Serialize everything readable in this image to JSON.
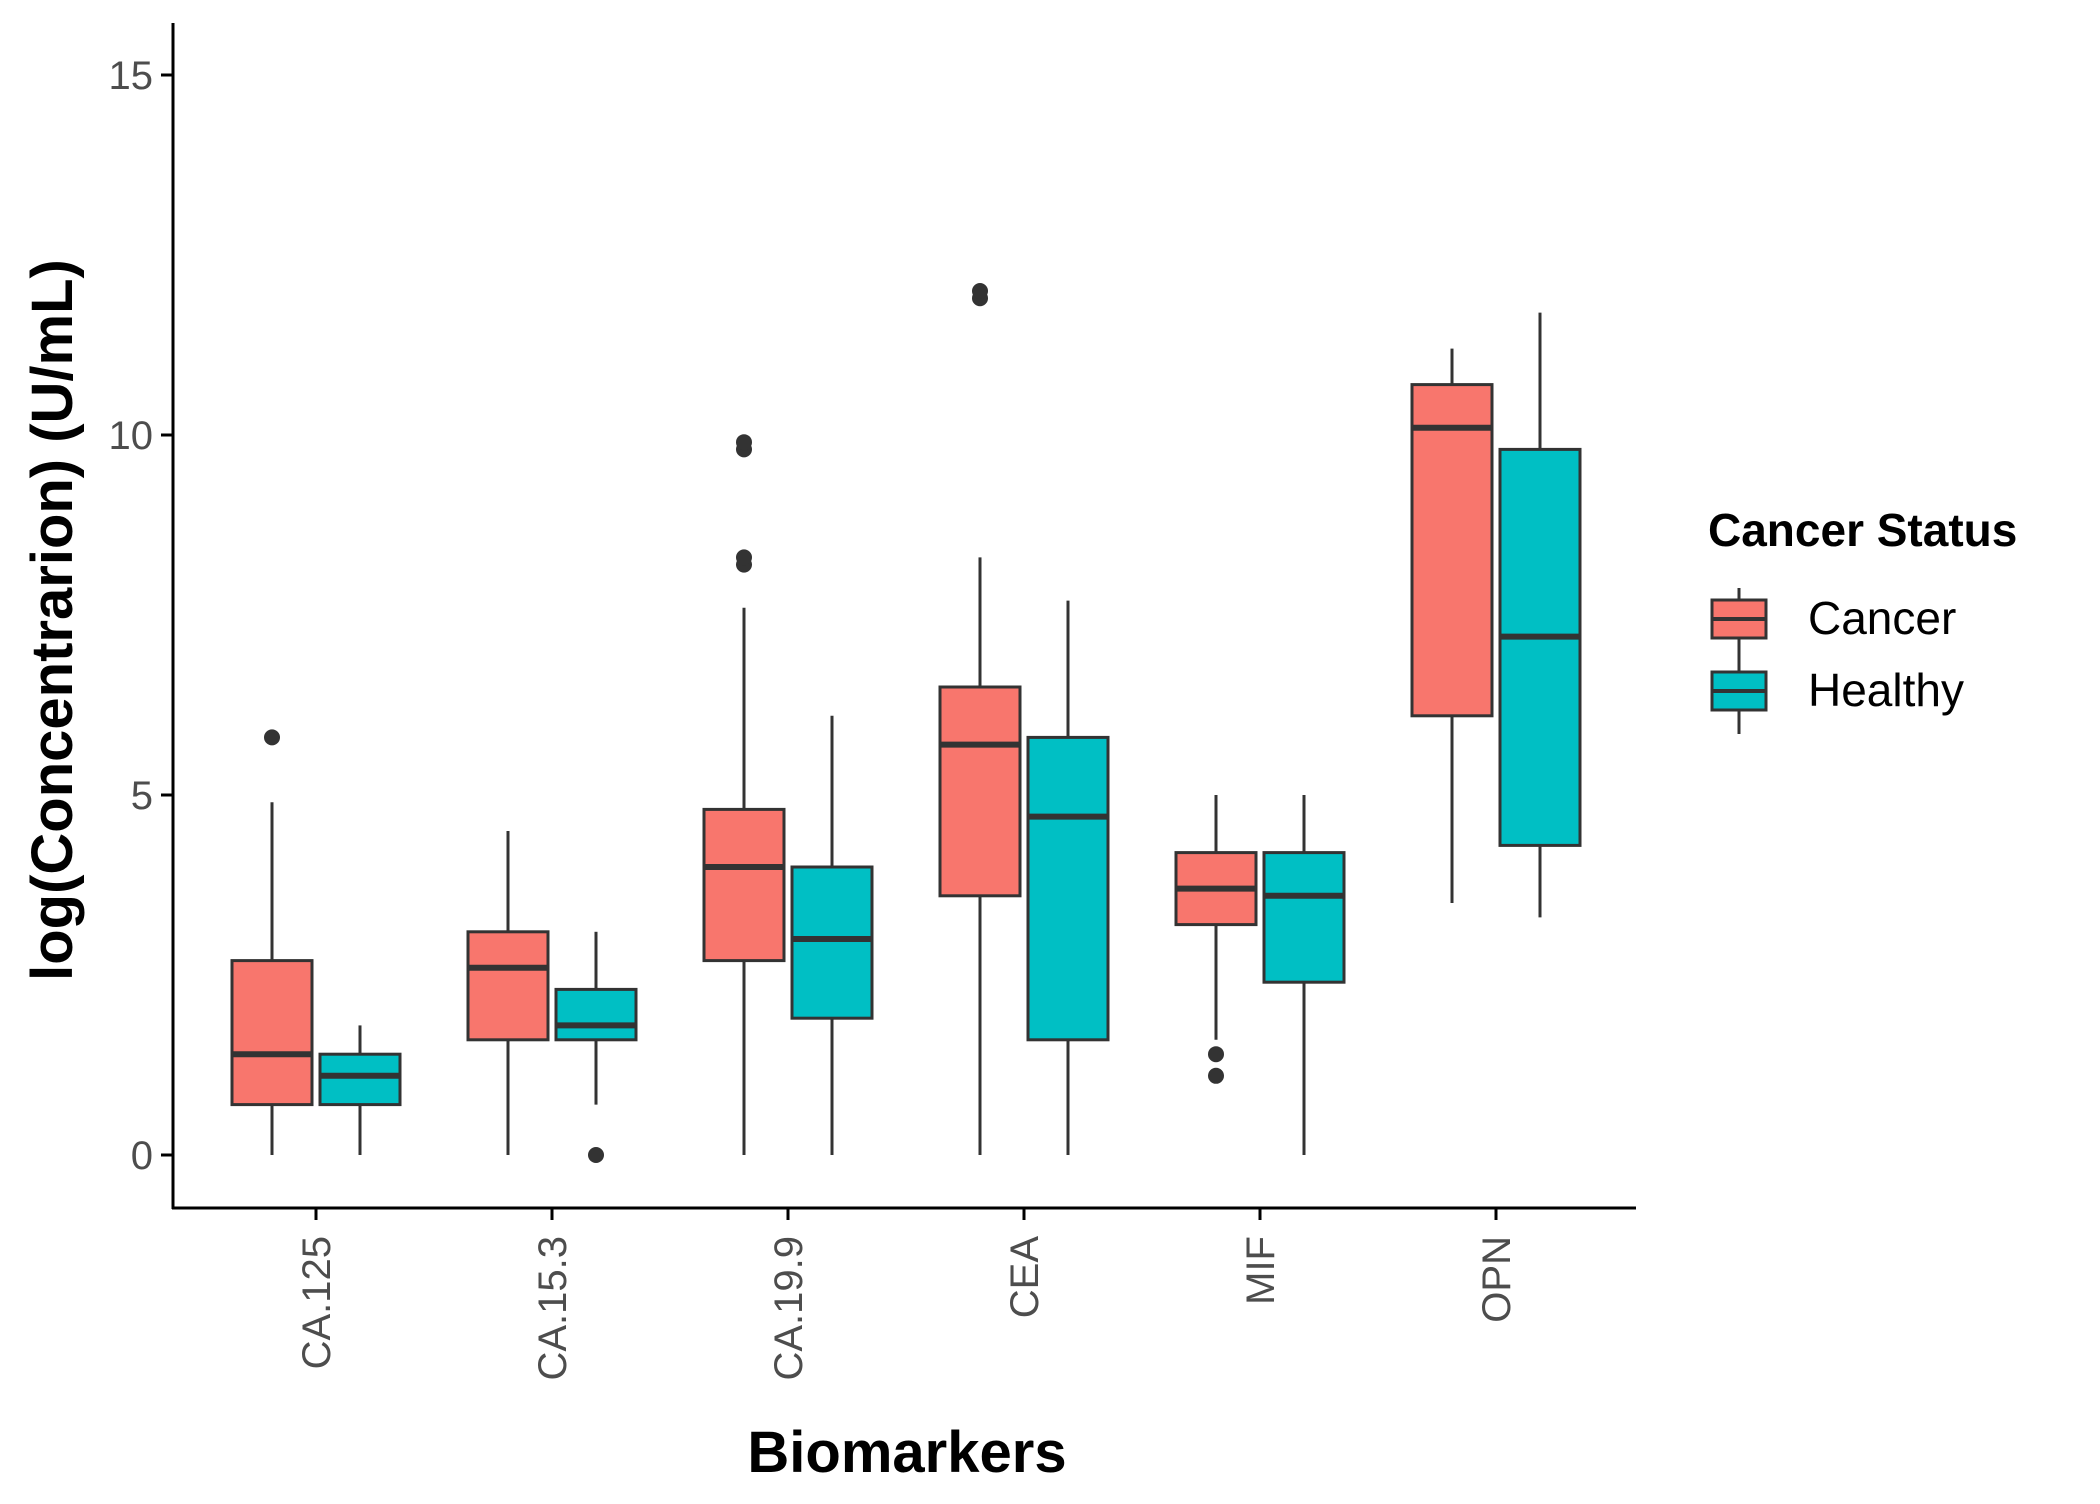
{
  "chart_data": {
    "type": "boxplot",
    "title": "",
    "xlabel": "Biomarkers",
    "ylabel": "log(Concentrarion) (U/mL)",
    "ylim": [
      -0.75,
      15.75
    ],
    "yticks": [
      0,
      5,
      10,
      15
    ],
    "ytick_labels": [
      "0",
      "5",
      "10",
      "15"
    ],
    "grid": false,
    "categories": [
      "CA.125",
      "CA.15.3",
      "CA.19.9",
      "CEA",
      "MIF",
      "OPN"
    ],
    "legend": {
      "title": "Cancer Status",
      "placement": "right",
      "entries": [
        "Cancer",
        "Healthy"
      ]
    },
    "colors": {
      "Cancer": "#F8766D",
      "Healthy": "#00BFC4",
      "outline": "#333333",
      "axis": "#000000"
    },
    "series": [
      {
        "name": "Cancer",
        "boxes": [
          {
            "category": "CA.125",
            "min": 0.0,
            "q1": 0.7,
            "median": 1.4,
            "q3": 2.7,
            "max": 4.9,
            "outliers": [
              5.8
            ]
          },
          {
            "category": "CA.15.3",
            "min": 0.0,
            "q1": 1.6,
            "median": 2.6,
            "q3": 3.1,
            "max": 4.5,
            "outliers": []
          },
          {
            "category": "CA.19.9",
            "min": 0.0,
            "q1": 2.7,
            "median": 4.0,
            "q3": 4.8,
            "max": 7.6,
            "outliers": [
              8.2,
              8.3,
              9.8,
              9.9
            ]
          },
          {
            "category": "CEA",
            "min": 0.0,
            "q1": 3.6,
            "median": 5.7,
            "q3": 6.5,
            "max": 8.3,
            "outliers": [
              11.9,
              12.0
            ]
          },
          {
            "category": "MIF",
            "min": 1.6,
            "q1": 3.2,
            "median": 3.7,
            "q3": 4.2,
            "max": 5.0,
            "outliers": [
              1.1,
              1.4
            ]
          },
          {
            "category": "OPN",
            "min": 3.5,
            "q1": 6.1,
            "median": 10.1,
            "q3": 10.7,
            "max": 11.2,
            "outliers": []
          }
        ]
      },
      {
        "name": "Healthy",
        "boxes": [
          {
            "category": "CA.125",
            "min": 0.0,
            "q1": 0.7,
            "median": 1.1,
            "q3": 1.4,
            "max": 1.8,
            "outliers": []
          },
          {
            "category": "CA.15.3",
            "min": 0.7,
            "q1": 1.6,
            "median": 1.8,
            "q3": 2.3,
            "max": 3.1,
            "outliers": [
              0.0
            ]
          },
          {
            "category": "CA.19.9",
            "min": 0.0,
            "q1": 1.9,
            "median": 3.0,
            "q3": 4.0,
            "max": 6.1,
            "outliers": []
          },
          {
            "category": "CEA",
            "min": 0.0,
            "q1": 1.6,
            "median": 4.7,
            "q3": 5.8,
            "max": 7.7,
            "outliers": []
          },
          {
            "category": "MIF",
            "min": 0.0,
            "q1": 2.4,
            "median": 3.6,
            "q3": 4.2,
            "max": 5.0,
            "outliers": []
          },
          {
            "category": "OPN",
            "min": 3.3,
            "q1": 4.3,
            "median": 7.2,
            "q3": 9.8,
            "max": 11.7,
            "outliers": []
          }
        ]
      }
    ]
  }
}
